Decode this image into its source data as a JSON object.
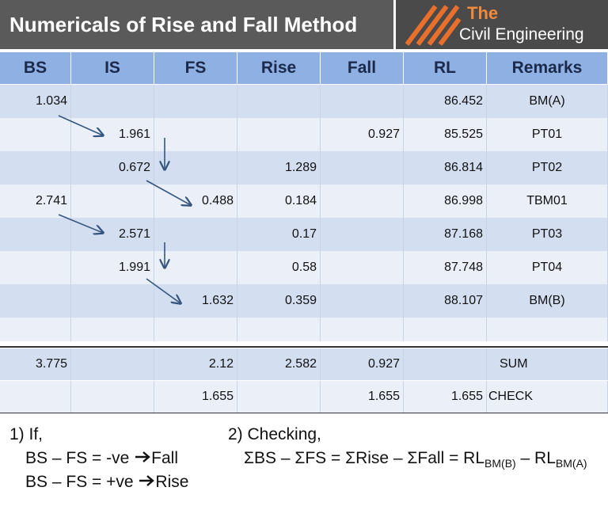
{
  "header": {
    "title": "Numericals of Rise and Fall Method",
    "logo": {
      "line1": "The",
      "line2": "Civil Engineering"
    }
  },
  "table": {
    "columns": [
      "BS",
      "IS",
      "FS",
      "Rise",
      "Fall",
      "RL",
      "Remarks"
    ],
    "rows": [
      [
        "1.034",
        null,
        null,
        null,
        null,
        "86.452",
        "BM(A)"
      ],
      [
        null,
        "1.961",
        null,
        null,
        "0.927",
        "85.525",
        "PT01"
      ],
      [
        null,
        "0.672",
        null,
        "1.289",
        null,
        "86.814",
        "PT02"
      ],
      [
        "2.741",
        null,
        "0.488",
        "0.184",
        null,
        "86.998",
        "TBM01"
      ],
      [
        null,
        "2.571",
        null,
        "0.17",
        null,
        "87.168",
        "PT03"
      ],
      [
        null,
        "1.991",
        null,
        "0.58",
        null,
        "87.748",
        "PT04"
      ],
      [
        null,
        null,
        "1.632",
        "0.359",
        null,
        "88.107",
        "BM(B)"
      ],
      [
        null,
        null,
        null,
        null,
        null,
        null,
        null
      ]
    ],
    "summary": [
      [
        "3.775",
        null,
        "2.12",
        "2.582",
        "0.927",
        null,
        "SUM"
      ],
      [
        null,
        null,
        "1.655",
        null,
        "1.655",
        "1.655",
        "CHECK"
      ]
    ]
  },
  "notes": {
    "condition": {
      "heading": "1) If,",
      "lines": [
        [
          "BS – FS = -ve",
          "Fall"
        ],
        [
          "BS – FS = +ve",
          "Rise"
        ]
      ]
    },
    "checking": {
      "heading": "2) Checking,",
      "formula": [
        "ΣBS – ΣFS = ΣRise – ΣFall = RL",
        "BM(B)",
        " – RL",
        "BM(A)"
      ]
    }
  }
}
